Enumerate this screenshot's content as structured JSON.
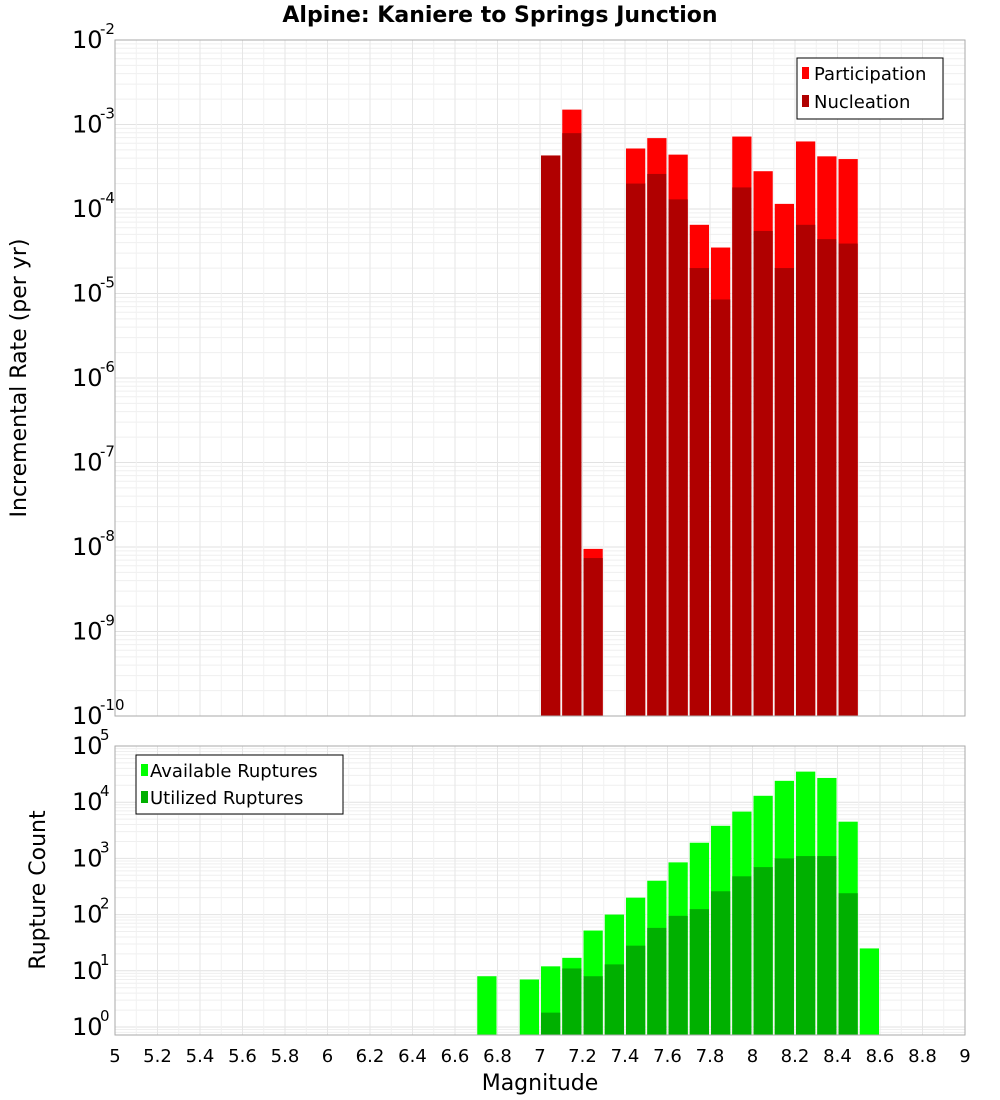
{
  "chart_data": [
    {
      "type": "bar",
      "title": "Alpine: Kaniere to Springs Junction",
      "ylabel": "Incremental Rate (per yr)",
      "xlabel": "",
      "yscale": "log",
      "ylim": [
        1e-10,
        0.01
      ],
      "xlim": [
        5,
        9
      ],
      "bin_width": 0.1,
      "grid": true,
      "legend_position": "top-right",
      "colors": {
        "Participation": "#ff0000",
        "Nucleation": "#b00000"
      },
      "x": [
        7.05,
        7.15,
        7.25,
        7.45,
        7.55,
        7.65,
        7.75,
        7.85,
        7.95,
        8.05,
        8.15,
        8.25,
        8.35,
        8.45
      ],
      "series": [
        {
          "name": "Participation",
          "values": [
            0.00043,
            0.0015,
            9.5e-09,
            0.00052,
            0.00069,
            0.00044,
            6.5e-05,
            3.5e-05,
            0.00072,
            0.00028,
            0.000115,
            0.00063,
            0.00042,
            0.00039
          ]
        },
        {
          "name": "Nucleation",
          "values": [
            0.00043,
            0.00079,
            7.4e-09,
            0.0002,
            0.00026,
            0.00013,
            2e-05,
            8.5e-06,
            0.00018,
            5.5e-05,
            2e-05,
            6.5e-05,
            4.4e-05,
            3.9e-05
          ]
        }
      ]
    },
    {
      "type": "bar",
      "title": "",
      "ylabel": "Rupture Count",
      "xlabel": "Magnitude",
      "yscale": "log",
      "ylim": [
        0.72,
        100000.0
      ],
      "xlim": [
        5,
        9
      ],
      "bin_width": 0.1,
      "grid": true,
      "legend_position": "top-left",
      "colors": {
        "Available Ruptures": "#00ff00",
        "Utilized Ruptures": "#00b000"
      },
      "x": [
        6.75,
        6.95,
        7.05,
        7.15,
        7.25,
        7.35,
        7.45,
        7.55,
        7.65,
        7.75,
        7.85,
        7.95,
        8.05,
        8.15,
        8.25,
        8.35,
        8.45,
        8.55
      ],
      "series": [
        {
          "name": "Available Ruptures",
          "values": [
            8,
            7,
            12,
            17,
            52,
            100,
            200,
            400,
            850,
            1900,
            3800,
            6800,
            13000,
            24000,
            35000,
            27000,
            4500,
            25
          ]
        },
        {
          "name": "Utilized Ruptures",
          "values": [
            0,
            0,
            1.8,
            11,
            8,
            13,
            28,
            58,
            95,
            125,
            260,
            480,
            700,
            1000,
            1100,
            1100,
            240,
            0
          ]
        }
      ]
    }
  ],
  "x_ticks": [
    "5",
    "5.2",
    "5.4",
    "5.6",
    "5.8",
    "6",
    "6.2",
    "6.4",
    "6.6",
    "6.8",
    "7",
    "7.2",
    "7.4",
    "7.6",
    "7.8",
    "8",
    "8.2",
    "8.4",
    "8.6",
    "8.8",
    "9"
  ],
  "top_y_ticks": [
    {
      "base": "10",
      "exp": "-10"
    },
    {
      "base": "10",
      "exp": "-9"
    },
    {
      "base": "10",
      "exp": "-8"
    },
    {
      "base": "10",
      "exp": "-7"
    },
    {
      "base": "10",
      "exp": "-6"
    },
    {
      "base": "10",
      "exp": "-5"
    },
    {
      "base": "10",
      "exp": "-4"
    },
    {
      "base": "10",
      "exp": "-3"
    },
    {
      "base": "10",
      "exp": "-2"
    }
  ],
  "bottom_y_ticks": [
    {
      "base": "10",
      "exp": "0"
    },
    {
      "base": "10",
      "exp": "1"
    },
    {
      "base": "10",
      "exp": "2"
    },
    {
      "base": "10",
      "exp": "3"
    },
    {
      "base": "10",
      "exp": "4"
    },
    {
      "base": "10",
      "exp": "5"
    }
  ]
}
